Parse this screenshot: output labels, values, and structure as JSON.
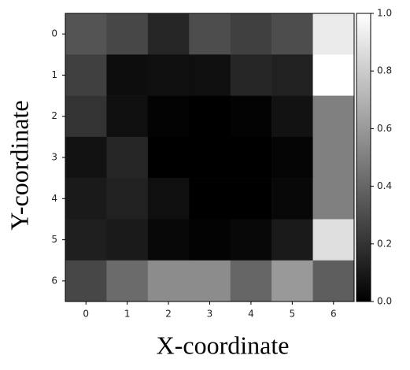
{
  "chart_data": {
    "type": "heatmap",
    "colormap": "gray",
    "x_label": "X-coordinate",
    "y_label": "Y-coordinate",
    "x": [
      0,
      1,
      2,
      3,
      4,
      5,
      6
    ],
    "y": [
      0,
      1,
      2,
      3,
      4,
      5,
      6
    ],
    "xlim": [
      -0.5,
      6.5
    ],
    "ylim": [
      -0.5,
      6.5
    ],
    "xticks": [
      0,
      1,
      2,
      3,
      4,
      5,
      6
    ],
    "yticks": [
      0,
      1,
      2,
      3,
      4,
      5,
      6
    ],
    "z": [
      [
        0.33,
        0.28,
        0.15,
        0.3,
        0.25,
        0.3,
        0.92
      ],
      [
        0.25,
        0.05,
        0.06,
        0.06,
        0.15,
        0.13,
        1.0
      ],
      [
        0.2,
        0.06,
        0.01,
        0.0,
        0.01,
        0.07,
        0.5
      ],
      [
        0.07,
        0.15,
        0.0,
        0.0,
        0.0,
        0.02,
        0.5
      ],
      [
        0.1,
        0.13,
        0.06,
        0.0,
        0.0,
        0.03,
        0.5
      ],
      [
        0.12,
        0.1,
        0.03,
        0.01,
        0.03,
        0.1,
        0.87
      ],
      [
        0.28,
        0.42,
        0.55,
        0.55,
        0.4,
        0.6,
        0.37
      ]
    ],
    "clim": [
      0,
      1
    ],
    "cticks": [
      {
        "value": 0,
        "label": "0.0"
      },
      {
        "value": 0.2,
        "label": "0.2"
      },
      {
        "value": 0.4,
        "label": "0.4"
      },
      {
        "value": 0.6,
        "label": "0.6"
      },
      {
        "value": 0.8,
        "label": "0.8"
      },
      {
        "value": 1,
        "label": "1.0"
      }
    ]
  }
}
